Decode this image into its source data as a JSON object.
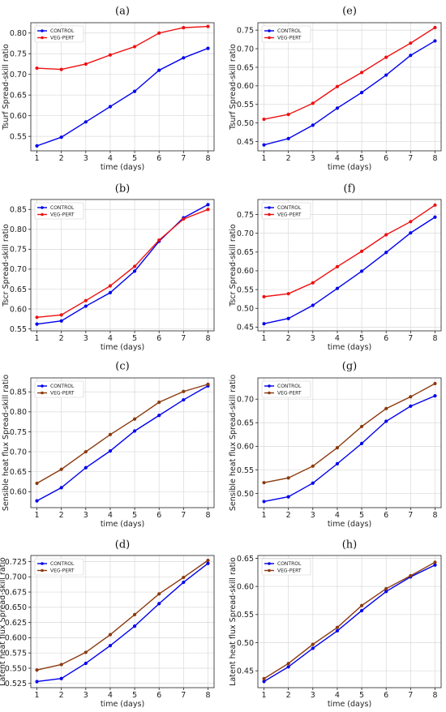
{
  "chart_data": [
    {
      "panel": "(a)",
      "type": "line",
      "xlabel": "time (days)",
      "ylabel": "Tsurf Spread-skill ratio",
      "x": [
        1,
        2,
        3,
        4,
        5,
        6,
        7,
        8
      ],
      "ylim": [
        0.515,
        0.825
      ],
      "yticks": [
        0.55,
        0.6,
        0.65,
        0.7,
        0.75,
        0.8
      ],
      "yfmt": 2,
      "series": [
        {
          "name": "CONTROL",
          "color": "#0000ee",
          "values": [
            0.527,
            0.548,
            0.585,
            0.622,
            0.659,
            0.71,
            0.74,
            0.763
          ]
        },
        {
          "name": "VEG-PERT",
          "color": "#ee1111",
          "values": [
            0.715,
            0.712,
            0.725,
            0.747,
            0.767,
            0.8,
            0.813,
            0.816
          ]
        }
      ],
      "legend": "top-left"
    },
    {
      "panel": "(e)",
      "type": "line",
      "xlabel": "time (days)",
      "ylabel": "Tsurf Spread-skill ratio",
      "x": [
        1,
        2,
        3,
        4,
        5,
        6,
        7,
        8
      ],
      "ylim": [
        0.425,
        0.77
      ],
      "yticks": [
        0.45,
        0.5,
        0.55,
        0.6,
        0.65,
        0.7,
        0.75
      ],
      "yfmt": 2,
      "series": [
        {
          "name": "CONTROL",
          "color": "#0000ee",
          "values": [
            0.441,
            0.458,
            0.494,
            0.54,
            0.582,
            0.629,
            0.682,
            0.721
          ]
        },
        {
          "name": "VEG-PERT",
          "color": "#ee1111",
          "values": [
            0.51,
            0.523,
            0.553,
            0.598,
            0.636,
            0.677,
            0.715,
            0.757
          ]
        }
      ],
      "legend": "top-left"
    },
    {
      "panel": "(b)",
      "type": "line",
      "xlabel": "time (days)",
      "ylabel": "Tscr Spread-skill ratio",
      "x": [
        1,
        2,
        3,
        4,
        5,
        6,
        7,
        8
      ],
      "ylim": [
        0.545,
        0.875
      ],
      "yticks": [
        0.55,
        0.6,
        0.65,
        0.7,
        0.75,
        0.8,
        0.85
      ],
      "yfmt": 2,
      "series": [
        {
          "name": "CONTROL",
          "color": "#0000ee",
          "values": [
            0.562,
            0.57,
            0.607,
            0.641,
            0.695,
            0.77,
            0.829,
            0.862
          ]
        },
        {
          "name": "VEG-PERT",
          "color": "#ee1111",
          "values": [
            0.579,
            0.585,
            0.621,
            0.658,
            0.707,
            0.773,
            0.826,
            0.85
          ]
        }
      ],
      "legend": "top-left"
    },
    {
      "panel": "(f)",
      "type": "line",
      "xlabel": "time (days)",
      "ylabel": "Tscr Spread-skill ratio",
      "x": [
        1,
        2,
        3,
        4,
        5,
        6,
        7,
        8
      ],
      "ylim": [
        0.44,
        0.79
      ],
      "yticks": [
        0.45,
        0.5,
        0.55,
        0.6,
        0.65,
        0.7,
        0.75
      ],
      "yfmt": 2,
      "series": [
        {
          "name": "CONTROL",
          "color": "#0000ee",
          "values": [
            0.459,
            0.473,
            0.508,
            0.553,
            0.599,
            0.649,
            0.701,
            0.743
          ]
        },
        {
          "name": "VEG-PERT",
          "color": "#ee1111",
          "values": [
            0.531,
            0.539,
            0.568,
            0.611,
            0.652,
            0.696,
            0.731,
            0.775
          ]
        }
      ],
      "legend": "top-left"
    },
    {
      "panel": "(c)",
      "type": "line",
      "xlabel": "time (days)",
      "ylabel": "Sensible heat flux Spread-skill ratio",
      "x": [
        1,
        2,
        3,
        4,
        5,
        6,
        7,
        8
      ],
      "ylim": [
        0.56,
        0.885
      ],
      "yticks": [
        0.6,
        0.65,
        0.7,
        0.75,
        0.8,
        0.85
      ],
      "yfmt": 2,
      "series": [
        {
          "name": "CONTROL",
          "color": "#0000ee",
          "values": [
            0.577,
            0.61,
            0.66,
            0.702,
            0.752,
            0.791,
            0.83,
            0.865
          ]
        },
        {
          "name": "VEG-PERT",
          "color": "#8b3a0e",
          "values": [
            0.621,
            0.656,
            0.7,
            0.743,
            0.782,
            0.824,
            0.851,
            0.869
          ]
        }
      ],
      "legend": "top-left"
    },
    {
      "panel": "(g)",
      "type": "line",
      "xlabel": "time (days)",
      "ylabel": "Sensible heat flux Spread-skill ratio",
      "x": [
        1,
        2,
        3,
        4,
        5,
        6,
        7,
        8
      ],
      "ylim": [
        0.47,
        0.745
      ],
      "yticks": [
        0.5,
        0.55,
        0.6,
        0.65,
        0.7
      ],
      "yfmt": 2,
      "series": [
        {
          "name": "CONTROL",
          "color": "#0000ee",
          "values": [
            0.483,
            0.493,
            0.522,
            0.563,
            0.606,
            0.653,
            0.685,
            0.707
          ]
        },
        {
          "name": "VEG-PERT",
          "color": "#8b3a0e",
          "values": [
            0.523,
            0.533,
            0.558,
            0.597,
            0.642,
            0.68,
            0.705,
            0.733
          ]
        }
      ],
      "legend": "top-left"
    },
    {
      "panel": "(d)",
      "type": "line",
      "xlabel": "time (days)",
      "ylabel": "Latent heat flux Spread-skill ratio",
      "x": [
        1,
        2,
        3,
        4,
        5,
        6,
        7,
        8
      ],
      "ylim": [
        0.518,
        0.735
      ],
      "yticks": [
        0.525,
        0.55,
        0.575,
        0.6,
        0.625,
        0.65,
        0.675,
        0.7,
        0.725
      ],
      "yfmt": 3,
      "series": [
        {
          "name": "CONTROL",
          "color": "#0000ee",
          "values": [
            0.528,
            0.533,
            0.558,
            0.587,
            0.619,
            0.656,
            0.691,
            0.722
          ]
        },
        {
          "name": "VEG-PERT",
          "color": "#8b3a0e",
          "values": [
            0.547,
            0.556,
            0.576,
            0.605,
            0.638,
            0.672,
            0.699,
            0.727
          ]
        }
      ],
      "legend": "top-left"
    },
    {
      "panel": "(h)",
      "type": "line",
      "xlabel": "time (days)",
      "ylabel": "Latent heat flux Spread-skill ratio",
      "x": [
        1,
        2,
        3,
        4,
        5,
        6,
        7,
        8
      ],
      "ylim": [
        0.42,
        0.655
      ],
      "yticks": [
        0.45,
        0.5,
        0.55,
        0.6,
        0.65
      ],
      "yfmt": 2,
      "series": [
        {
          "name": "CONTROL",
          "color": "#0000ee",
          "values": [
            0.431,
            0.457,
            0.49,
            0.521,
            0.557,
            0.591,
            0.617,
            0.638
          ]
        },
        {
          "name": "VEG-PERT",
          "color": "#8b3a0e",
          "values": [
            0.436,
            0.463,
            0.497,
            0.527,
            0.566,
            0.596,
            0.619,
            0.643
          ]
        }
      ],
      "legend": "top-left"
    }
  ]
}
